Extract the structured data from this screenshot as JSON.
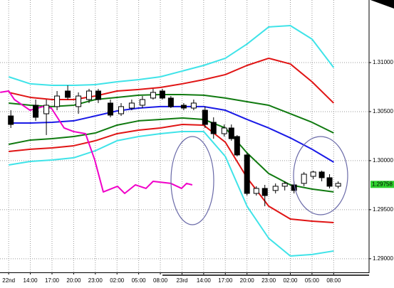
{
  "chart_data": {
    "type": "candlestick",
    "xlim": [
      -1.2,
      49.9
    ],
    "ylim": [
      1.28861,
      1.31638
    ],
    "grid": true,
    "xticks": [
      {
        "value": 0,
        "label": "22nd"
      },
      {
        "value": 3,
        "label": "14:00"
      },
      {
        "value": 6,
        "label": "17:00"
      },
      {
        "value": 9,
        "label": "20:00"
      },
      {
        "value": 12,
        "label": "23:00"
      },
      {
        "value": 15,
        "label": "02:00"
      },
      {
        "value": 18,
        "label": "05:00"
      },
      {
        "value": 21,
        "label": "08:00"
      },
      {
        "value": 24,
        "label": "23rd"
      },
      {
        "value": 27,
        "label": "14:00"
      },
      {
        "value": 30,
        "label": "17:00"
      },
      {
        "value": 33,
        "label": "20:00"
      },
      {
        "value": 36,
        "label": "23:00"
      },
      {
        "value": 39,
        "label": "02:00"
      },
      {
        "value": 42,
        "label": "05:00"
      },
      {
        "value": 45,
        "label": "08:00"
      }
    ],
    "yticks": [
      {
        "value": 1.31,
        "label": "1.31000"
      },
      {
        "value": 1.305,
        "label": "1.30500"
      },
      {
        "value": 1.3,
        "label": "1.30000"
      },
      {
        "value": 1.295,
        "label": "1.29500"
      },
      {
        "value": 1.29,
        "label": "1.29000"
      }
    ],
    "last_price": {
      "value": 1.29758,
      "label": "1.29758"
    },
    "candles": {
      "up_color": "#ffffff",
      "down_color": "#000000",
      "x": [
        0.3,
        3.74,
        5.22,
        6.7,
        8.18,
        9.66,
        11.13,
        12.41,
        14.09,
        15.57,
        17.04,
        18.52,
        20,
        21.28,
        22.46,
        24.24,
        25.62,
        27.19,
        28.37,
        29.85,
        30.84,
        31.63,
        33,
        34.29,
        35.47,
        36.95,
        38.23,
        39.51,
        40.89,
        42.17,
        43.35,
        44.43,
        45.62
      ],
      "open": [
        1.30456,
        1.30565,
        1.30478,
        1.30551,
        1.3071,
        1.30551,
        1.30623,
        1.3071,
        1.30587,
        1.30478,
        1.30536,
        1.30565,
        1.30638,
        1.3071,
        1.30638,
        1.30565,
        1.30536,
        1.30514,
        1.30391,
        1.30275,
        1.30333,
        1.30246,
        1.30058,
        1.29666,
        1.29717,
        1.29696,
        1.29739,
        1.29753,
        1.29768,
        1.2984,
        1.29884,
        1.29826,
        1.29739
      ],
      "high": [
        1.30514,
        1.30623,
        1.30623,
        1.3071,
        1.30768,
        1.30696,
        1.30732,
        1.30732,
        1.30623,
        1.30587,
        1.30623,
        1.30659,
        1.30732,
        1.30732,
        1.30659,
        1.30587,
        1.30623,
        1.30551,
        1.30442,
        1.30369,
        1.30369,
        1.30261,
        1.30079,
        1.29739,
        1.29753,
        1.29768,
        1.29789,
        1.29789,
        1.29884,
        1.29898,
        1.29898,
        1.29862,
        1.29789
      ],
      "low": [
        1.30333,
        1.30406,
        1.30261,
        1.30514,
        1.30623,
        1.30478,
        1.30587,
        1.30587,
        1.30442,
        1.30456,
        1.30514,
        1.30536,
        1.30623,
        1.30623,
        1.30536,
        1.30514,
        1.30514,
        1.30333,
        1.30224,
        1.30246,
        1.30203,
        1.30043,
        1.29644,
        1.29644,
        1.29536,
        1.29666,
        1.29696,
        1.29666,
        1.29739,
        1.29811,
        1.29789,
        1.29717,
        1.29717
      ],
      "close": [
        1.30369,
        1.30442,
        1.30565,
        1.30659,
        1.30645,
        1.30659,
        1.3071,
        1.30623,
        1.30464,
        1.30551,
        1.30587,
        1.30623,
        1.30696,
        1.30638,
        1.30551,
        1.30536,
        1.30587,
        1.30369,
        1.30275,
        1.30333,
        1.30224,
        1.30058,
        1.29666,
        1.29717,
        1.29644,
        1.29739,
        1.29768,
        1.29696,
        1.29862,
        1.29884,
        1.29826,
        1.29739,
        1.29768
      ]
    },
    "series": [
      {
        "color": "#3fe3e8",
        "x": [
          0,
          3,
          6,
          9,
          12,
          15,
          18,
          21,
          24,
          27,
          30,
          33,
          36,
          39,
          42,
          45
        ],
        "values": [
          1.30855,
          1.30783,
          1.30768,
          1.30768,
          1.30775,
          1.30804,
          1.30826,
          1.30855,
          1.30913,
          1.30971,
          1.31044,
          1.31189,
          1.31363,
          1.31377,
          1.31239,
          1.30949
        ]
      },
      {
        "color": "#e01414",
        "x": [
          0,
          3,
          6,
          9,
          12,
          15,
          18,
          21,
          24,
          27,
          30,
          33,
          36,
          39,
          42,
          45
        ],
        "values": [
          1.30696,
          1.30645,
          1.30623,
          1.30623,
          1.30659,
          1.3071,
          1.30725,
          1.30746,
          1.30783,
          1.30826,
          1.30877,
          1.30971,
          1.31044,
          1.30986,
          1.30804,
          1.30587
        ]
      },
      {
        "color": "#107a10",
        "x": [
          0,
          3,
          6,
          9,
          12,
          15,
          18,
          21,
          24,
          27,
          30,
          33,
          36,
          39,
          42,
          45
        ],
        "values": [
          1.30587,
          1.30565,
          1.30551,
          1.30565,
          1.30623,
          1.30645,
          1.30667,
          1.30674,
          1.30674,
          1.30667,
          1.30638,
          1.30601,
          1.30565,
          1.30478,
          1.30391,
          1.30282
        ]
      },
      {
        "color": "#1a1ae6",
        "x": [
          0,
          3,
          6,
          9,
          12,
          15,
          18,
          21,
          24,
          27,
          30,
          33,
          36,
          39,
          42,
          45
        ],
        "values": [
          1.30384,
          1.30384,
          1.30391,
          1.30406,
          1.30456,
          1.30507,
          1.30536,
          1.30551,
          1.30551,
          1.30551,
          1.30514,
          1.3042,
          1.30333,
          1.30232,
          1.30116,
          1.29985
        ]
      },
      {
        "color": "#107a10",
        "x": [
          0,
          3,
          6,
          9,
          12,
          15,
          18,
          21,
          24,
          27,
          30,
          33,
          36,
          39,
          42,
          45
        ],
        "values": [
          1.30166,
          1.3021,
          1.30224,
          1.30246,
          1.30282,
          1.30362,
          1.30406,
          1.3042,
          1.30435,
          1.3042,
          1.30333,
          1.30079,
          1.29869,
          1.29753,
          1.2971,
          1.29681
        ]
      },
      {
        "color": "#e01414",
        "x": [
          0,
          3,
          6,
          9,
          12,
          15,
          18,
          21,
          24,
          27,
          30,
          33,
          36,
          39,
          42,
          45
        ],
        "values": [
          1.30094,
          1.30116,
          1.3013,
          1.30152,
          1.30203,
          1.30275,
          1.30311,
          1.30333,
          1.30369,
          1.30362,
          1.30188,
          1.29826,
          1.29536,
          1.29405,
          1.29383,
          1.29369
        ]
      },
      {
        "color": "#3fe3e8",
        "x": [
          0,
          3,
          6,
          9,
          12,
          15,
          18,
          21,
          24,
          27,
          30,
          33,
          36,
          39,
          42,
          45
        ],
        "values": [
          1.29956,
          1.29992,
          1.30007,
          1.30029,
          1.30101,
          1.30203,
          1.30246,
          1.30275,
          1.30297,
          1.30297,
          1.30043,
          1.29536,
          1.29209,
          1.29028,
          1.29043,
          1.29079
        ]
      },
      {
        "color": "#f000c8",
        "x": [
          -1.18,
          0,
          0.79,
          2.96,
          4.73,
          5.91,
          7.68,
          8.97,
          10.64,
          11.92,
          13.1,
          15.07,
          16.06,
          17.54,
          19.01,
          20,
          22.46,
          23.94,
          24.63,
          25.42
        ],
        "values": [
          1.30696,
          1.3071,
          1.30623,
          1.30514,
          1.30551,
          1.30536,
          1.30333,
          1.30297,
          1.30275,
          1.30007,
          1.29681,
          1.29739,
          1.29666,
          1.29753,
          1.29717,
          1.29789,
          1.29768,
          1.29717,
          1.29768,
          1.29753
        ]
      }
    ]
  }
}
